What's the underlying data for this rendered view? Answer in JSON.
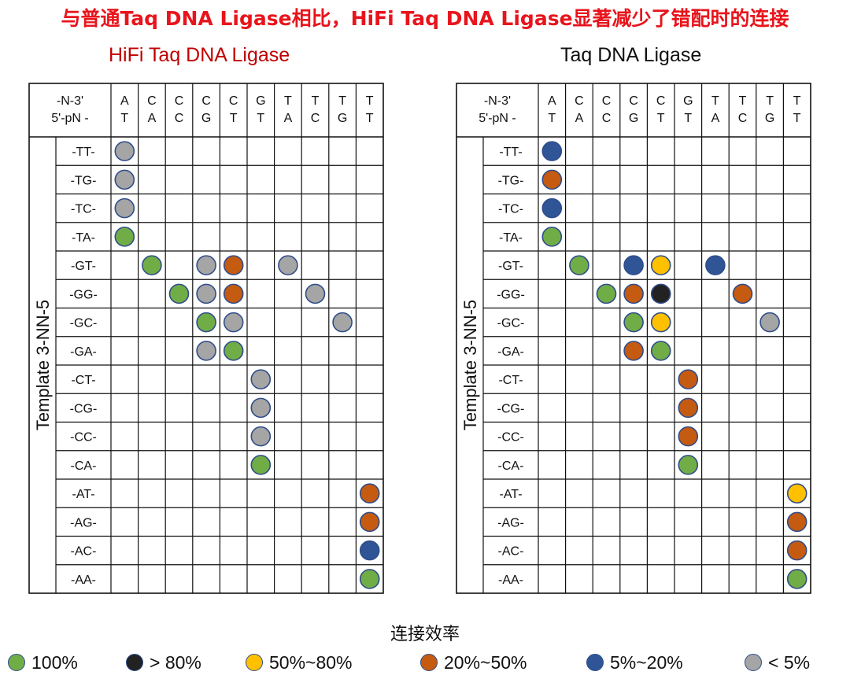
{
  "headline": "与普通Taq DNA Ligase相比，HiFi Taq DNA Ligase显著减少了错配时的连接",
  "legend": {
    "title": "连接效率",
    "items": [
      {
        "key": "100",
        "label": "100%",
        "color": "#70ad47"
      },
      {
        "key": "gt80",
        "label": "> 80%",
        "color": "#222222"
      },
      {
        "key": "50_80",
        "label": "50%~80%",
        "color": "#ffc000"
      },
      {
        "key": "20_50",
        "label": "20%~50%",
        "color": "#c55a11"
      },
      {
        "key": "5_20",
        "label": "5%~20%",
        "color": "#2f5597"
      },
      {
        "key": "lt5",
        "label": "< 5%",
        "color": "#a5a5a5"
      }
    ]
  },
  "chart_data": {
    "type": "table",
    "header_corner": [
      "-N-3'",
      "5'-pN -"
    ],
    "columns": [
      [
        "A",
        "T"
      ],
      [
        "C",
        "A"
      ],
      [
        "C",
        "C"
      ],
      [
        "C",
        "G"
      ],
      [
        "C",
        "T"
      ],
      [
        "G",
        "T"
      ],
      [
        "T",
        "A"
      ],
      [
        "T",
        "C"
      ],
      [
        "T",
        "G"
      ],
      [
        "T",
        "T"
      ]
    ],
    "row_group_label": "Template 3-NN-5",
    "rows": [
      "-TT-",
      "-TG-",
      "-TC-",
      "-TA-",
      "-GT-",
      "-GG-",
      "-GC-",
      "-GA-",
      "-CT-",
      "-CG-",
      "-CC-",
      "-CA-",
      "-AT-",
      "-AG-",
      "-AC-",
      "-AA-"
    ],
    "panels": [
      {
        "title": "HiFi Taq DNA Ligase",
        "cells": [
          {
            "row": 0,
            "col": 0,
            "level": "lt5"
          },
          {
            "row": 1,
            "col": 0,
            "level": "lt5"
          },
          {
            "row": 2,
            "col": 0,
            "level": "lt5"
          },
          {
            "row": 3,
            "col": 0,
            "level": "100"
          },
          {
            "row": 4,
            "col": 1,
            "level": "100"
          },
          {
            "row": 4,
            "col": 3,
            "level": "lt5"
          },
          {
            "row": 4,
            "col": 4,
            "level": "20_50"
          },
          {
            "row": 4,
            "col": 6,
            "level": "lt5"
          },
          {
            "row": 5,
            "col": 2,
            "level": "100"
          },
          {
            "row": 5,
            "col": 3,
            "level": "lt5"
          },
          {
            "row": 5,
            "col": 4,
            "level": "20_50"
          },
          {
            "row": 5,
            "col": 7,
            "level": "lt5"
          },
          {
            "row": 6,
            "col": 3,
            "level": "100"
          },
          {
            "row": 6,
            "col": 4,
            "level": "lt5"
          },
          {
            "row": 6,
            "col": 8,
            "level": "lt5"
          },
          {
            "row": 7,
            "col": 3,
            "level": "lt5"
          },
          {
            "row": 7,
            "col": 4,
            "level": "100"
          },
          {
            "row": 8,
            "col": 5,
            "level": "lt5"
          },
          {
            "row": 9,
            "col": 5,
            "level": "lt5"
          },
          {
            "row": 10,
            "col": 5,
            "level": "lt5"
          },
          {
            "row": 11,
            "col": 5,
            "level": "100"
          },
          {
            "row": 12,
            "col": 9,
            "level": "20_50"
          },
          {
            "row": 13,
            "col": 9,
            "level": "20_50"
          },
          {
            "row": 14,
            "col": 9,
            "level": "5_20"
          },
          {
            "row": 15,
            "col": 9,
            "level": "100"
          }
        ]
      },
      {
        "title": "Taq DNA Ligase",
        "cells": [
          {
            "row": 0,
            "col": 0,
            "level": "5_20"
          },
          {
            "row": 1,
            "col": 0,
            "level": "20_50"
          },
          {
            "row": 2,
            "col": 0,
            "level": "5_20"
          },
          {
            "row": 3,
            "col": 0,
            "level": "100"
          },
          {
            "row": 4,
            "col": 1,
            "level": "100"
          },
          {
            "row": 4,
            "col": 3,
            "level": "5_20"
          },
          {
            "row": 4,
            "col": 4,
            "level": "50_80"
          },
          {
            "row": 4,
            "col": 6,
            "level": "5_20"
          },
          {
            "row": 5,
            "col": 2,
            "level": "100"
          },
          {
            "row": 5,
            "col": 3,
            "level": "20_50"
          },
          {
            "row": 5,
            "col": 4,
            "level": "gt80"
          },
          {
            "row": 5,
            "col": 7,
            "level": "20_50"
          },
          {
            "row": 6,
            "col": 3,
            "level": "100"
          },
          {
            "row": 6,
            "col": 4,
            "level": "50_80"
          },
          {
            "row": 6,
            "col": 8,
            "level": "lt5"
          },
          {
            "row": 7,
            "col": 3,
            "level": "20_50"
          },
          {
            "row": 7,
            "col": 4,
            "level": "100"
          },
          {
            "row": 8,
            "col": 5,
            "level": "20_50"
          },
          {
            "row": 9,
            "col": 5,
            "level": "20_50"
          },
          {
            "row": 10,
            "col": 5,
            "level": "20_50"
          },
          {
            "row": 11,
            "col": 5,
            "level": "100"
          },
          {
            "row": 12,
            "col": 9,
            "level": "50_80"
          },
          {
            "row": 13,
            "col": 9,
            "level": "20_50"
          },
          {
            "row": 14,
            "col": 9,
            "level": "20_50"
          },
          {
            "row": 15,
            "col": 9,
            "level": "100"
          }
        ]
      }
    ]
  }
}
